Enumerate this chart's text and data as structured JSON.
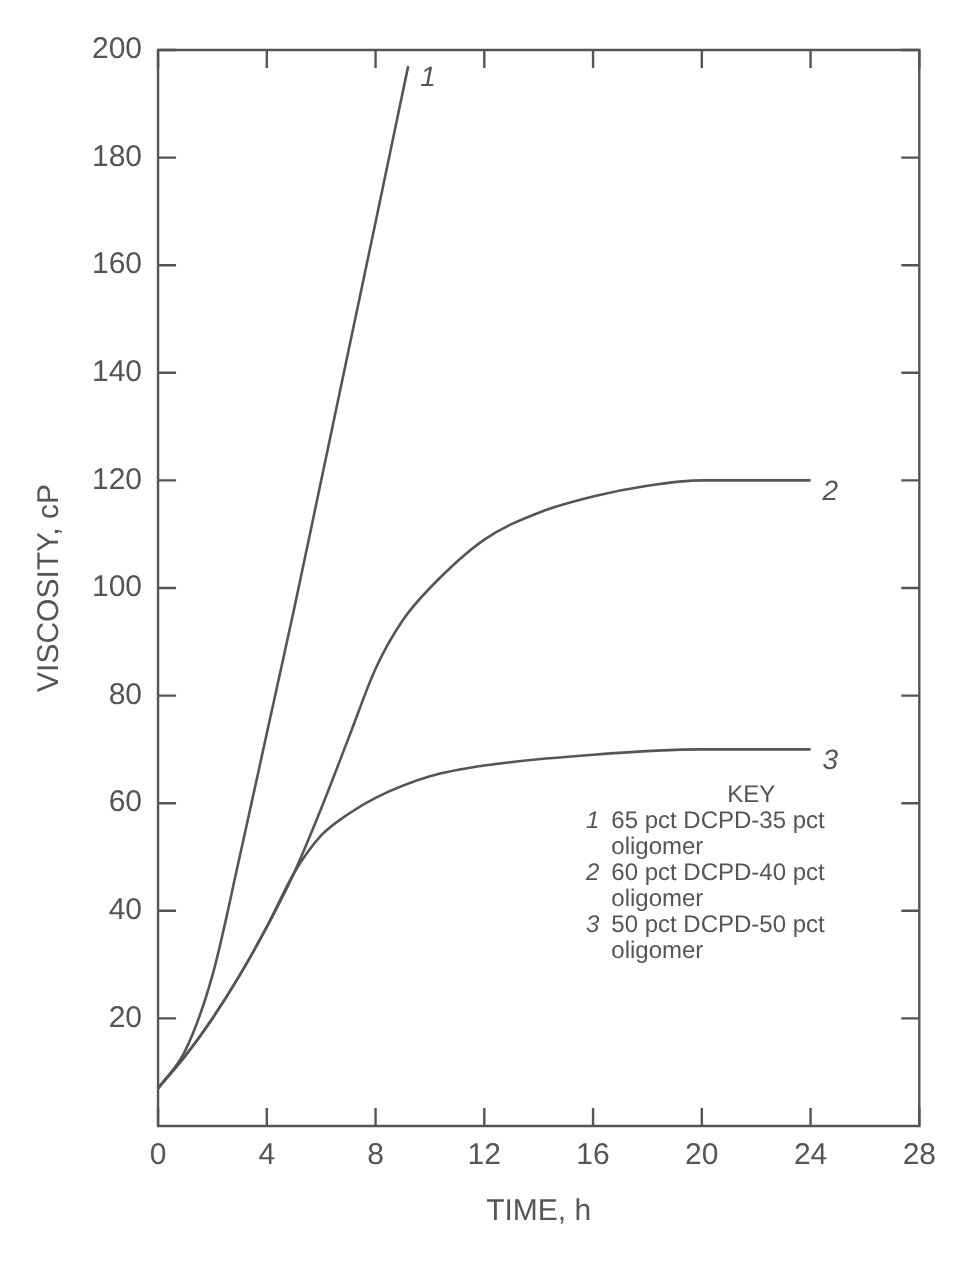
{
  "chart_data": {
    "type": "line",
    "xlabel": "TIME, h",
    "ylabel": "VISCOSITY, cP",
    "xlim": [
      0,
      28
    ],
    "xticks": [
      0,
      4,
      8,
      12,
      16,
      20,
      24,
      28
    ],
    "ylim": [
      0,
      200
    ],
    "yticks": [
      20,
      40,
      60,
      80,
      100,
      120,
      140,
      160,
      180,
      200
    ],
    "grid": false,
    "legend": "top right",
    "legend_title": "KEY",
    "marker": "none",
    "line_style": "solid",
    "series": [
      {
        "name": "1",
        "color": "#555555",
        "x": [
          0,
          1,
          2,
          3,
          4,
          5,
          6,
          7,
          8,
          9.2
        ],
        "values": [
          7,
          14,
          28,
          50,
          73,
          96,
          120,
          144,
          168,
          197
        ]
      },
      {
        "name": "2",
        "color": "#555555",
        "x": [
          0,
          1,
          2,
          3,
          4,
          5,
          6,
          7,
          8,
          9,
          10,
          12,
          14,
          16,
          18,
          20,
          24
        ],
        "values": [
          7,
          13,
          20,
          28,
          37,
          47,
          59,
          72,
          85,
          94,
          100,
          109,
          114,
          117,
          119,
          120,
          120
        ]
      },
      {
        "name": "3",
        "color": "#555555",
        "x": [
          0,
          1,
          2,
          3,
          4,
          5,
          6,
          7,
          8,
          10,
          12,
          16,
          20,
          24
        ],
        "values": [
          7,
          13,
          20,
          28,
          37,
          47,
          54,
          58,
          61,
          65,
          67,
          69,
          70,
          70
        ]
      }
    ],
    "annotations": [
      "65 pct DCPD-35 pct oligomer",
      "60 pct DCPD-40 pct oligomer",
      "50 pct DCPD-50 pct oligomer"
    ]
  }
}
